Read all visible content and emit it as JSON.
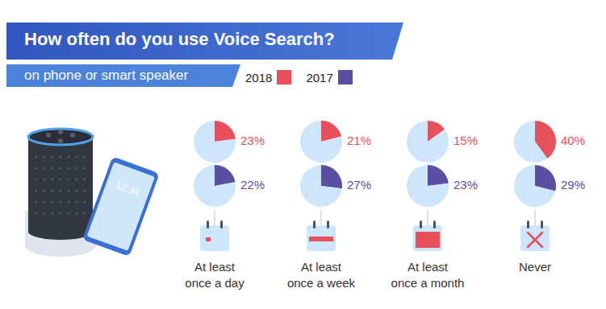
{
  "chart_data": {
    "type": "pie",
    "title": "How often do you use Voice Search?",
    "subtitle": "on phone or smart speaker",
    "categories": [
      "At least once a day",
      "At least once a week",
      "At least once a month",
      "Never"
    ],
    "series": [
      {
        "name": "2018",
        "color": "#e8505b",
        "values": [
          23,
          21,
          15,
          40
        ],
        "value_labels": [
          "23%",
          "21%",
          "15%",
          "40%"
        ]
      },
      {
        "name": "2017",
        "color": "#5a4fa2",
        "values": [
          22,
          27,
          23,
          29
        ],
        "value_labels": [
          "22%",
          "27%",
          "23%",
          "29%"
        ]
      }
    ],
    "data_labels": true,
    "legend": "top",
    "annotations": [
      "12:34"
    ]
  }
}
